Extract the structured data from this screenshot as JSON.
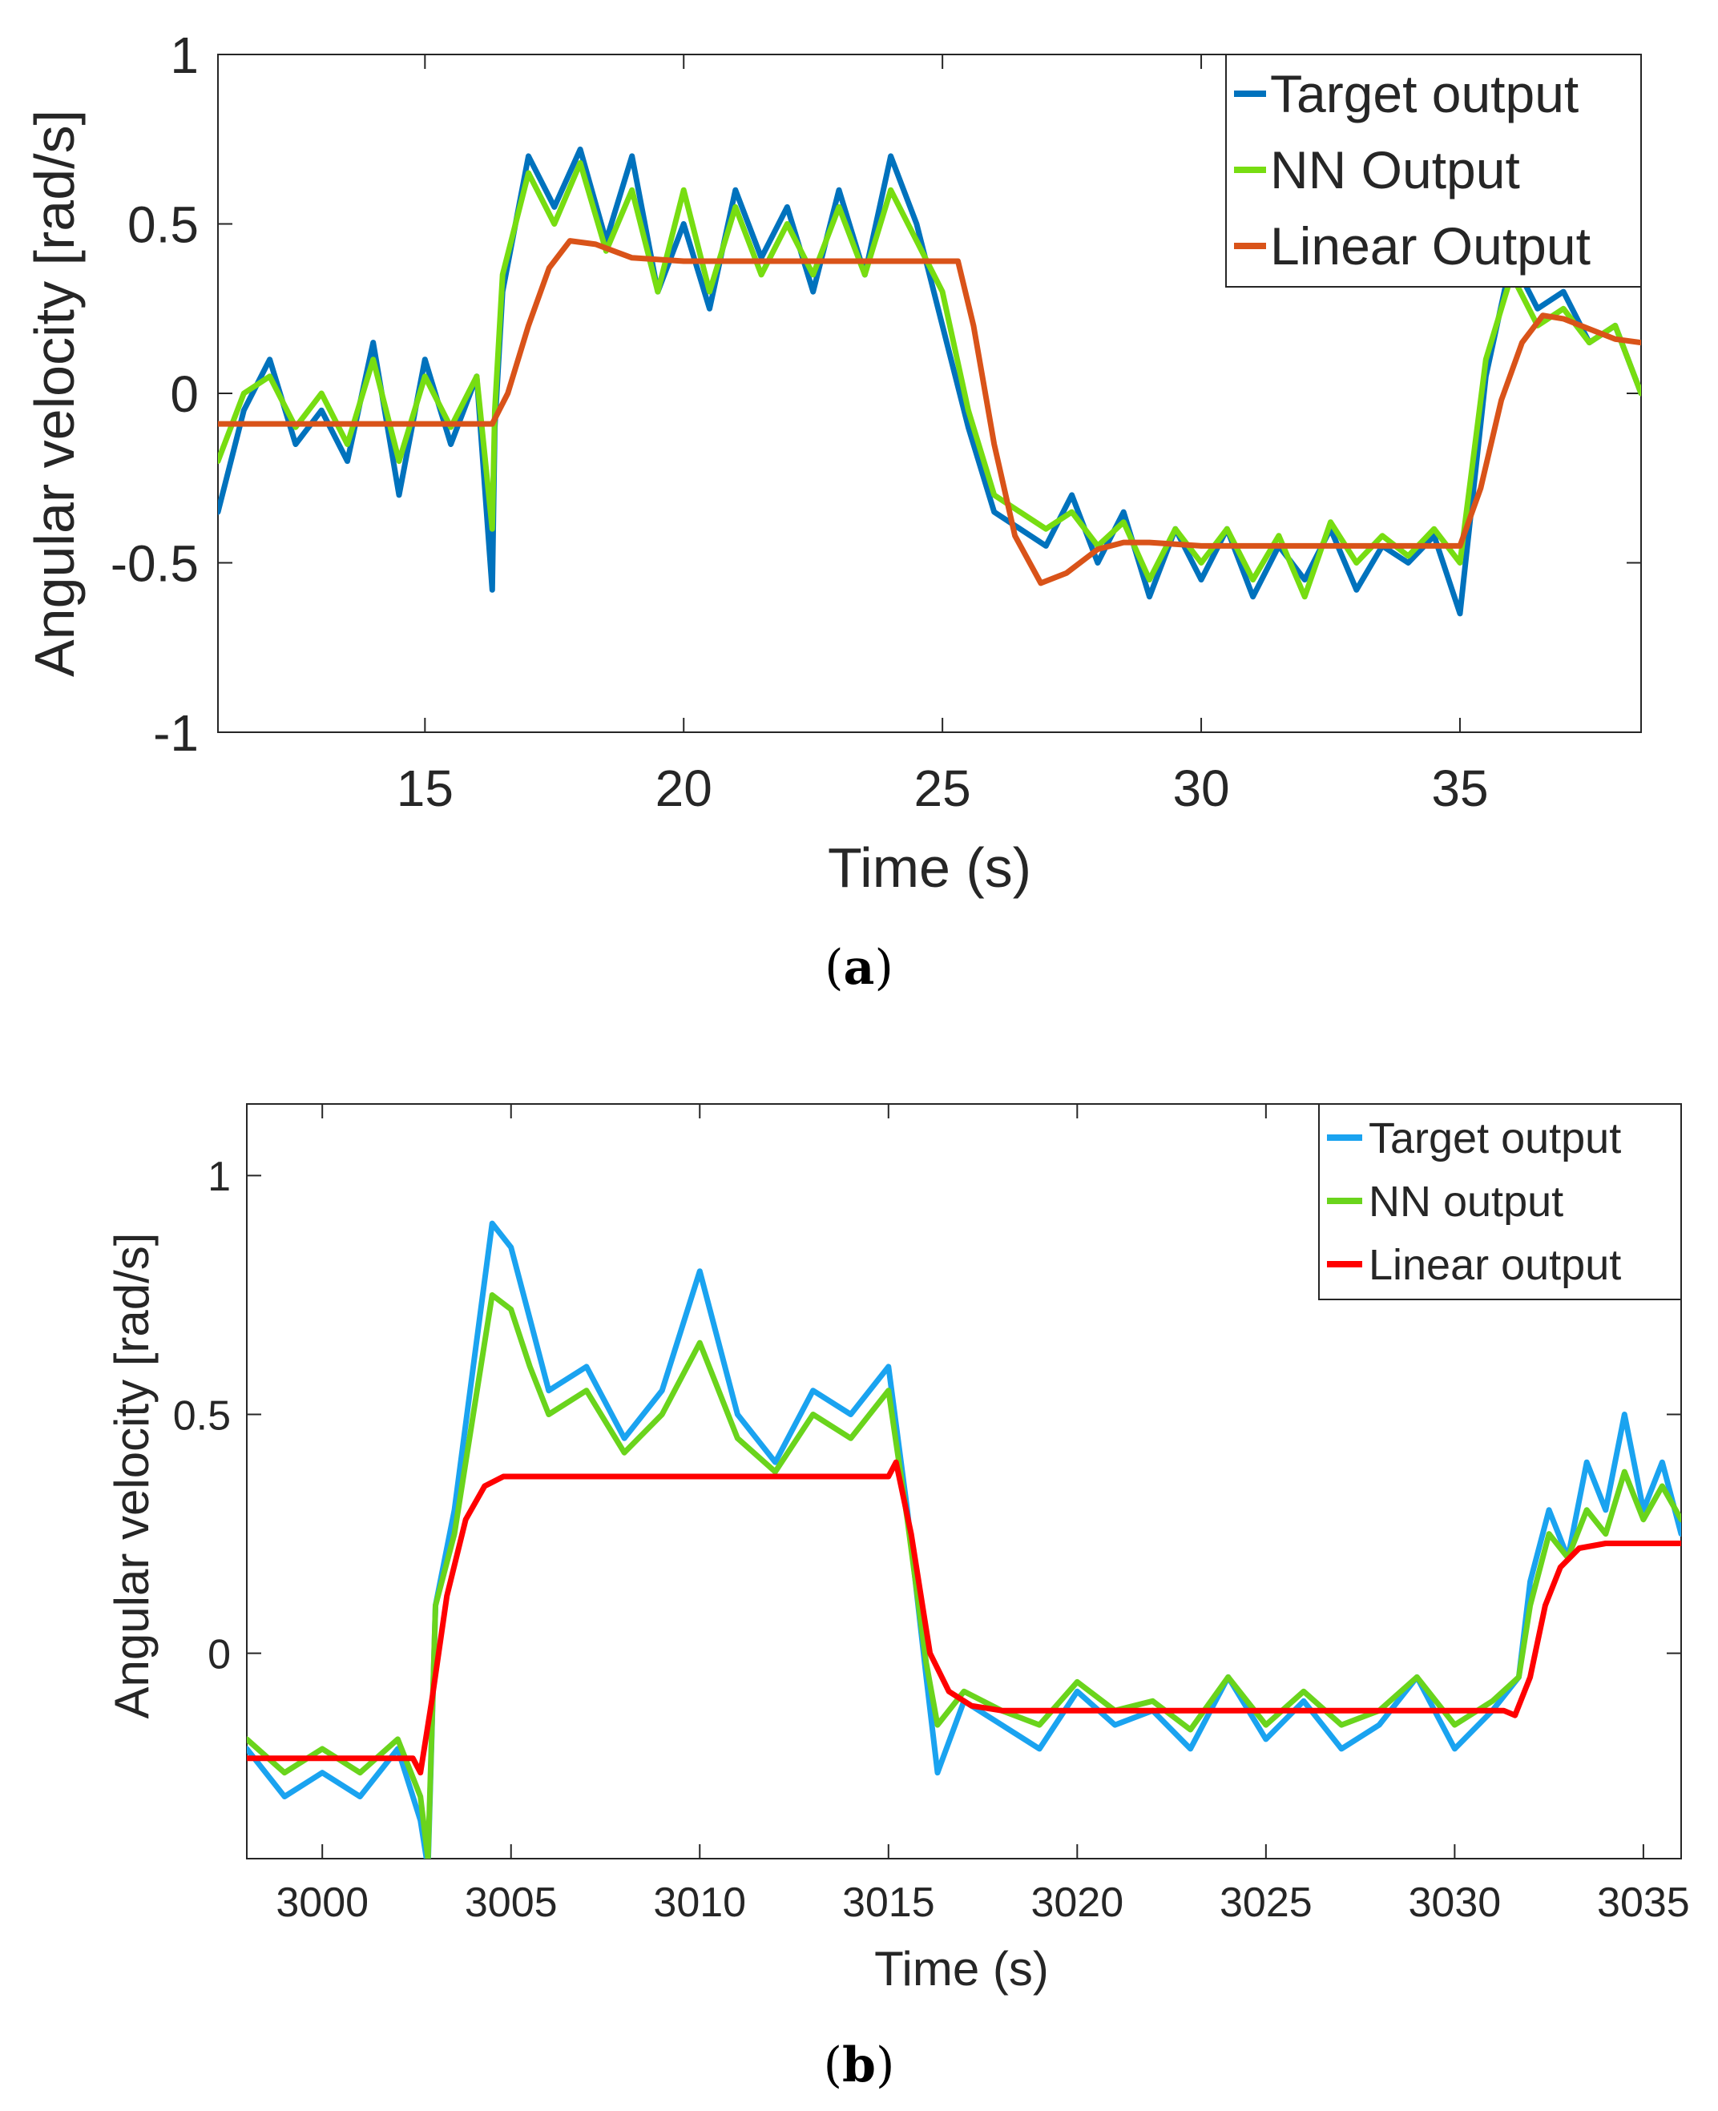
{
  "chart_data": [
    {
      "type": "line",
      "panel_label": "a",
      "xlabel": "Time (s)",
      "ylabel": "Angular velocity [rad/s]",
      "xlim": [
        11,
        38.5
      ],
      "ylim": [
        -1,
        1
      ],
      "xticks": [
        15,
        20,
        25,
        30,
        35
      ],
      "xtick_labels": [
        "15",
        "20",
        "25",
        "30",
        "35"
      ],
      "yticks": [
        -1,
        -0.5,
        0,
        0.5,
        1
      ],
      "ytick_labels": [
        "-1",
        "-0.5",
        "0",
        "0.5",
        "1"
      ],
      "legend_position": "top-right",
      "series": [
        {
          "name": "Target output",
          "color": "#0072BD",
          "x": [
            11,
            11.5,
            12,
            12.5,
            13,
            13.5,
            14,
            14.5,
            15,
            15.5,
            16,
            16.3,
            16.35,
            16.5,
            17,
            17.5,
            18,
            18.5,
            19,
            19.5,
            20,
            20.5,
            21,
            21.5,
            22,
            22.5,
            23,
            23.5,
            24,
            24.5,
            25,
            25.5,
            26,
            26.5,
            27,
            27.5,
            28,
            28.5,
            29,
            29.5,
            30,
            30.5,
            31,
            31.5,
            32,
            32.5,
            33,
            33.5,
            34,
            34.5,
            35,
            35.5,
            36,
            36.5,
            37,
            37.5,
            38,
            38.5
          ],
          "values": [
            -0.35,
            -0.05,
            0.1,
            -0.15,
            -0.05,
            -0.2,
            0.15,
            -0.3,
            0.1,
            -0.15,
            0.05,
            -0.58,
            -0.1,
            0.3,
            0.7,
            0.55,
            0.72,
            0.45,
            0.7,
            0.3,
            0.5,
            0.25,
            0.6,
            0.4,
            0.55,
            0.3,
            0.6,
            0.35,
            0.7,
            0.5,
            0.2,
            -0.1,
            -0.35,
            -0.4,
            -0.45,
            -0.3,
            -0.5,
            -0.35,
            -0.6,
            -0.4,
            -0.55,
            -0.4,
            -0.6,
            -0.45,
            -0.55,
            -0.4,
            -0.58,
            -0.45,
            -0.5,
            -0.42,
            -0.65,
            0.05,
            0.4,
            0.25,
            0.3,
            0.15,
            0.2,
            0
          ]
        },
        {
          "name": "NN Output",
          "color": "#77DD11",
          "x": [
            11,
            11.5,
            12,
            12.5,
            13,
            13.5,
            14,
            14.5,
            15,
            15.5,
            16,
            16.3,
            16.35,
            16.5,
            17,
            17.5,
            18,
            18.5,
            19,
            19.5,
            20,
            20.5,
            21,
            21.5,
            22,
            22.5,
            23,
            23.5,
            24,
            24.5,
            25,
            25.5,
            26,
            26.5,
            27,
            27.5,
            28,
            28.5,
            29,
            29.5,
            30,
            30.5,
            31,
            31.5,
            32,
            32.5,
            33,
            33.5,
            34,
            34.5,
            35,
            35.5,
            36,
            36.5,
            37,
            37.5,
            38,
            38.5
          ],
          "values": [
            -0.2,
            0.0,
            0.05,
            -0.1,
            0.0,
            -0.15,
            0.1,
            -0.2,
            0.05,
            -0.1,
            0.05,
            -0.4,
            -0.05,
            0.35,
            0.65,
            0.5,
            0.68,
            0.42,
            0.6,
            0.3,
            0.6,
            0.3,
            0.55,
            0.35,
            0.5,
            0.35,
            0.55,
            0.35,
            0.6,
            0.45,
            0.3,
            -0.05,
            -0.3,
            -0.35,
            -0.4,
            -0.35,
            -0.45,
            -0.38,
            -0.55,
            -0.4,
            -0.5,
            -0.4,
            -0.55,
            -0.42,
            -0.6,
            -0.38,
            -0.5,
            -0.42,
            -0.48,
            -0.4,
            -0.5,
            0.1,
            0.35,
            0.2,
            0.25,
            0.15,
            0.2,
            0
          ]
        },
        {
          "name": "Linear Output",
          "color": "#D95319",
          "x": [
            11,
            14,
            16.3,
            16.6,
            17,
            17.4,
            17.8,
            18.3,
            19,
            20,
            22,
            24,
            25.3,
            25.6,
            26,
            26.4,
            26.9,
            27.4,
            28,
            28.5,
            29,
            30,
            32,
            34,
            35,
            35.4,
            35.8,
            36.2,
            36.6,
            37,
            37.5,
            38,
            38.5
          ],
          "values": [
            -0.09,
            -0.09,
            -0.09,
            0.0,
            0.2,
            0.37,
            0.45,
            0.44,
            0.4,
            0.39,
            0.39,
            0.39,
            0.39,
            0.2,
            -0.15,
            -0.42,
            -0.56,
            -0.53,
            -0.46,
            -0.44,
            -0.44,
            -0.45,
            -0.45,
            -0.45,
            -0.45,
            -0.28,
            -0.02,
            0.15,
            0.23,
            0.22,
            0.19,
            0.16,
            0.15
          ]
        }
      ]
    },
    {
      "type": "line",
      "panel_label": "b",
      "xlabel": "Time (s)",
      "ylabel": "Angular velocity [rad/s]",
      "xlim": [
        2998,
        3036
      ],
      "ylim": [
        -0.43,
        1.15
      ],
      "xticks": [
        3000,
        3005,
        3010,
        3015,
        3020,
        3025,
        3030,
        3035
      ],
      "xtick_labels": [
        "3000",
        "3005",
        "3010",
        "3015",
        "3020",
        "3025",
        "3030",
        "3035"
      ],
      "yticks": [
        0,
        0.5,
        1
      ],
      "ytick_labels": [
        "0",
        "0.5",
        "1"
      ],
      "legend_position": "top-right",
      "series": [
        {
          "name": "Target output",
          "color": "#1AA3F0",
          "x": [
            2998,
            2999,
            3000,
            3001,
            3002,
            3002.6,
            3002.8,
            3003,
            3003.5,
            3004,
            3004.5,
            3005,
            3005.5,
            3006,
            3007,
            3008,
            3009,
            3010,
            3011,
            3012,
            3013,
            3014,
            3015,
            3015.5,
            3016,
            3016.3,
            3017,
            3018,
            3019,
            3020,
            3021,
            3022,
            3023,
            3024,
            3025,
            3026,
            3027,
            3028,
            3029,
            3030,
            3031,
            3031.7,
            3032,
            3032.5,
            3033,
            3033.5,
            3034,
            3034.5,
            3035,
            3035.5,
            3036
          ],
          "values": [
            -0.2,
            -0.3,
            -0.25,
            -0.3,
            -0.2,
            -0.35,
            -0.45,
            0.1,
            0.3,
            0.6,
            0.9,
            0.85,
            0.7,
            0.55,
            0.6,
            0.45,
            0.55,
            0.8,
            0.5,
            0.4,
            0.55,
            0.5,
            0.6,
            0.3,
            -0.05,
            -0.25,
            -0.1,
            -0.15,
            -0.2,
            -0.08,
            -0.15,
            -0.12,
            -0.2,
            -0.05,
            -0.18,
            -0.1,
            -0.2,
            -0.15,
            -0.05,
            -0.2,
            -0.12,
            -0.05,
            0.15,
            0.3,
            0.2,
            0.4,
            0.3,
            0.5,
            0.3,
            0.4,
            0.25
          ]
        },
        {
          "name": "NN output",
          "color": "#6AD41C",
          "x": [
            2998,
            2999,
            3000,
            3001,
            3002,
            3002.6,
            3002.8,
            3003,
            3003.5,
            3004,
            3004.5,
            3005,
            3005.5,
            3006,
            3007,
            3008,
            3009,
            3010,
            3011,
            3012,
            3013,
            3014,
            3015,
            3015.5,
            3016,
            3016.3,
            3017,
            3018,
            3019,
            3020,
            3021,
            3022,
            3023,
            3024,
            3025,
            3026,
            3027,
            3028,
            3029,
            3030,
            3031,
            3031.7,
            3032,
            3032.5,
            3033,
            3033.5,
            3034,
            3034.5,
            3035,
            3035.5,
            3036
          ],
          "values": [
            -0.18,
            -0.25,
            -0.2,
            -0.25,
            -0.18,
            -0.3,
            -0.43,
            0.1,
            0.25,
            0.5,
            0.75,
            0.72,
            0.6,
            0.5,
            0.55,
            0.42,
            0.5,
            0.65,
            0.45,
            0.38,
            0.5,
            0.45,
            0.55,
            0.28,
            -0.02,
            -0.15,
            -0.08,
            -0.12,
            -0.15,
            -0.06,
            -0.12,
            -0.1,
            -0.16,
            -0.05,
            -0.15,
            -0.08,
            -0.15,
            -0.12,
            -0.05,
            -0.15,
            -0.1,
            -0.05,
            0.1,
            0.25,
            0.2,
            0.3,
            0.25,
            0.38,
            0.28,
            0.35,
            0.28
          ]
        },
        {
          "name": "Linear output",
          "color": "#FF0000",
          "x": [
            2998,
            3000,
            3002.4,
            3002.6,
            3002.9,
            3003.3,
            3003.8,
            3004.3,
            3004.8,
            3005.5,
            3008,
            3012,
            3015,
            3015.2,
            3015.6,
            3016.1,
            3016.6,
            3017.2,
            3018,
            3020,
            3025,
            3031.3,
            3031.6,
            3032,
            3032.4,
            3032.8,
            3033.3,
            3034,
            3036
          ],
          "values": [
            -0.22,
            -0.22,
            -0.22,
            -0.25,
            -0.1,
            0.12,
            0.28,
            0.35,
            0.37,
            0.37,
            0.37,
            0.37,
            0.37,
            0.4,
            0.25,
            0.0,
            -0.08,
            -0.11,
            -0.12,
            -0.12,
            -0.12,
            -0.12,
            -0.13,
            -0.05,
            0.1,
            0.18,
            0.22,
            0.23,
            0.23
          ]
        }
      ]
    }
  ]
}
